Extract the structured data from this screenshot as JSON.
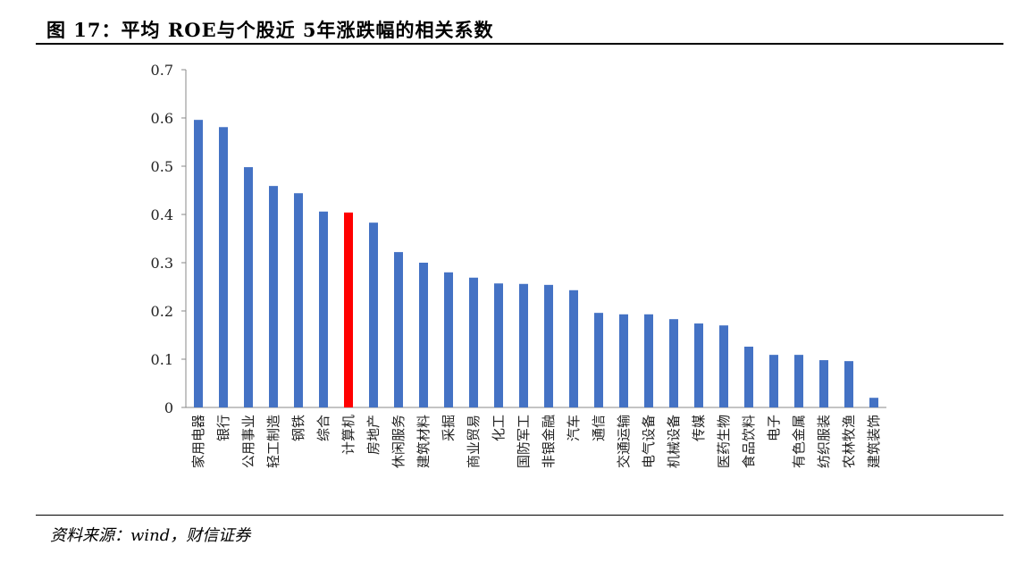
{
  "header": {
    "title": "图 17：平均 ROE与个股近 5年涨跌幅的相关系数"
  },
  "footer": {
    "source": "资料来源：wind，财信证券"
  },
  "colors": {
    "bar": "#4472C4",
    "highlight": "#FF0000"
  },
  "chart_data": {
    "type": "bar",
    "title": "平均 ROE与个股近 5年涨跌幅的相关系数",
    "xlabel": "",
    "ylabel": "",
    "ylim": [
      0,
      0.7
    ],
    "yticks": [
      "0",
      "0.1",
      "0.2",
      "0.3",
      "0.4",
      "0.5",
      "0.6",
      "0.7"
    ],
    "grid": false,
    "highlight_category": "计算机",
    "categories": [
      "家用电器",
      "银行",
      "公用事业",
      "轻工制造",
      "钢铁",
      "综合",
      "计算机",
      "房地产",
      "休闲服务",
      "建筑材料",
      "采掘",
      "商业贸易",
      "化工",
      "国防军工",
      "非银金融",
      "汽车",
      "通信",
      "交通运输",
      "电气设备",
      "机械设备",
      "传媒",
      "医药生物",
      "食品饮料",
      "电子",
      "有色金属",
      "纺织服装",
      "农林牧渔",
      "建筑装饰"
    ],
    "values": [
      0.596,
      0.581,
      0.498,
      0.459,
      0.444,
      0.406,
      0.404,
      0.383,
      0.322,
      0.3,
      0.28,
      0.269,
      0.257,
      0.256,
      0.254,
      0.243,
      0.196,
      0.193,
      0.193,
      0.183,
      0.174,
      0.17,
      0.126,
      0.109,
      0.109,
      0.098,
      0.096,
      0.02
    ]
  }
}
